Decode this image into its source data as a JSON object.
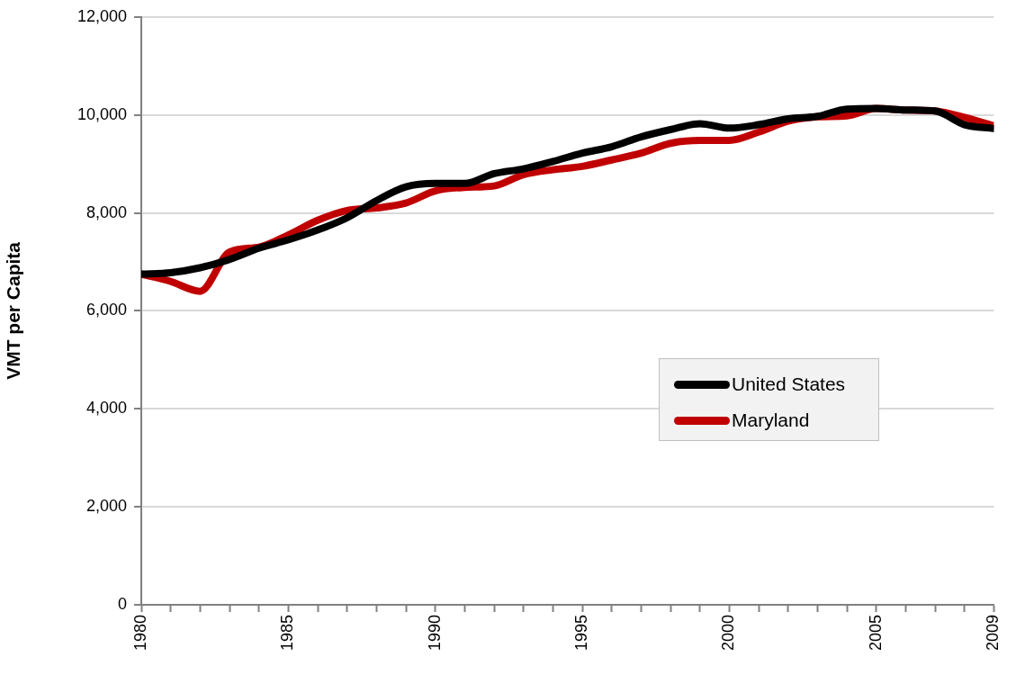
{
  "chart_data": {
    "type": "line",
    "ylabel": "VMT per Capita",
    "x": [
      1980,
      1981,
      1982,
      1983,
      1984,
      1985,
      1986,
      1987,
      1988,
      1989,
      1990,
      1991,
      1992,
      1993,
      1994,
      1995,
      1996,
      1997,
      1998,
      1999,
      2000,
      2001,
      2002,
      2003,
      2004,
      2005,
      2006,
      2007,
      2008,
      2009
    ],
    "series": [
      {
        "name": "United States",
        "color": "#000000",
        "values": [
          6750,
          6780,
          6880,
          7050,
          7280,
          7450,
          7650,
          7900,
          8250,
          8530,
          8600,
          8600,
          8800,
          8900,
          9050,
          9220,
          9350,
          9550,
          9700,
          9820,
          9730,
          9800,
          9920,
          9970,
          10120,
          10130,
          10100,
          10080,
          9800,
          9720
        ]
      },
      {
        "name": "Maryland",
        "color": "#c00000",
        "values": [
          6750,
          6600,
          6400,
          7200,
          7300,
          7550,
          7850,
          8050,
          8100,
          8200,
          8450,
          8520,
          8550,
          8780,
          8880,
          8950,
          9080,
          9220,
          9420,
          9480,
          9480,
          9650,
          9870,
          9960,
          9980,
          10130,
          10100,
          10080,
          9950,
          9780
        ]
      }
    ],
    "xlim": [
      1980,
      2009
    ],
    "xticks": [
      1980,
      {
        "value": 1981,
        "label": null
      },
      {
        "value": 1982,
        "label": null
      },
      {
        "value": 1983,
        "label": null
      },
      {
        "value": 1984,
        "label": null
      },
      1985,
      {
        "value": 1986,
        "label": null
      },
      {
        "value": 1987,
        "label": null
      },
      {
        "value": 1988,
        "label": null
      },
      {
        "value": 1989,
        "label": null
      },
      1990,
      {
        "value": 1991,
        "label": null
      },
      {
        "value": 1992,
        "label": null
      },
      {
        "value": 1993,
        "label": null
      },
      {
        "value": 1994,
        "label": null
      },
      1995,
      {
        "value": 1996,
        "label": null
      },
      {
        "value": 1997,
        "label": null
      },
      {
        "value": 1998,
        "label": null
      },
      {
        "value": 1999,
        "label": null
      },
      2000,
      {
        "value": 2001,
        "label": null
      },
      {
        "value": 2002,
        "label": null
      },
      {
        "value": 2003,
        "label": null
      },
      {
        "value": 2004,
        "label": null
      },
      2005,
      {
        "value": 2006,
        "label": null
      },
      {
        "value": 2007,
        "label": null
      },
      {
        "value": 2008,
        "label": null
      },
      2009
    ],
    "ylim": [
      0,
      12000
    ],
    "yticks": [
      {
        "value": 0,
        "label": "0"
      },
      {
        "value": 2000,
        "label": "2,000"
      },
      {
        "value": 4000,
        "label": "4,000"
      },
      {
        "value": 6000,
        "label": "6,000"
      },
      {
        "value": 8000,
        "label": "8,000"
      },
      {
        "value": 10000,
        "label": "10,000"
      },
      {
        "value": 12000,
        "label": "12,000"
      }
    ],
    "grid": "y",
    "legend": "right",
    "marker": "none",
    "line_style": "solid"
  }
}
